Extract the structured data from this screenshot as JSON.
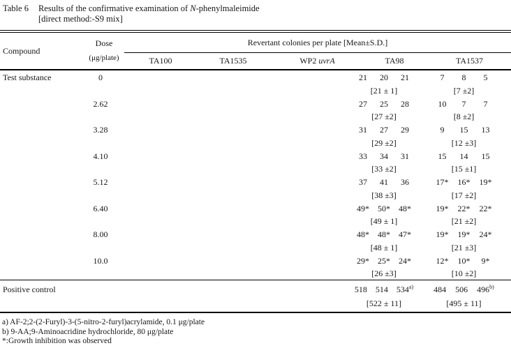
{
  "title": {
    "label": "Table 6",
    "line1_pre": "Results of the confirmative examination of ",
    "line1_italic": "N",
    "line1_post": "-phenylmaleimide",
    "line2": "[direct method:-S9 mix]"
  },
  "header": {
    "compound": "Compound",
    "dose_line1": "Dose",
    "dose_line2": "(μg/plate)",
    "span": "Revertant colonies per plate [Mean±S.D.]",
    "strains": {
      "ta100": "TA100",
      "ta1535": "TA1535",
      "wp2_pre": "WP2 ",
      "wp2_italic": "uvrA",
      "ta98": "TA98",
      "ta1537": "TA1537"
    }
  },
  "rows": [
    {
      "label": "Test substance",
      "dose": "0",
      "ta98": [
        "21",
        "20",
        "21"
      ],
      "ta98_mean": "[21 ± 1]",
      "ta1537": [
        "7",
        "8",
        "5"
      ],
      "ta1537_mean": "[7 ±2]"
    },
    {
      "label": "",
      "dose": "2.62",
      "ta98": [
        "27",
        "25",
        "28"
      ],
      "ta98_mean": "[27 ±2]",
      "ta1537": [
        "10",
        "7",
        "7"
      ],
      "ta1537_mean": "[8 ±2]"
    },
    {
      "label": "",
      "dose": "3.28",
      "ta98": [
        "31",
        "27",
        "29"
      ],
      "ta98_mean": "[29 ±2]",
      "ta1537": [
        "9",
        "15",
        "13"
      ],
      "ta1537_mean": "[12 ±3]"
    },
    {
      "label": "",
      "dose": "4.10",
      "ta98": [
        "33",
        "34",
        "31"
      ],
      "ta98_mean": "[33 ±2]",
      "ta1537": [
        "15",
        "14",
        "15"
      ],
      "ta1537_mean": "[15 ±1]"
    },
    {
      "label": "",
      "dose": "5.12",
      "ta98": [
        "37",
        "41",
        "36"
      ],
      "ta98_mean": "[38 ±3]",
      "ta1537": [
        "17*",
        "16*",
        "19*"
      ],
      "ta1537_mean": "[17 ±2]"
    },
    {
      "label": "",
      "dose": "6.40",
      "ta98": [
        "49*",
        "50*",
        "48*"
      ],
      "ta98_mean": "[49 ± 1]",
      "ta1537": [
        "19*",
        "22*",
        "22*"
      ],
      "ta1537_mean": "[21 ±2]"
    },
    {
      "label": "",
      "dose": "8.00",
      "ta98": [
        "48*",
        "48*",
        "47*"
      ],
      "ta98_mean": "[48 ± 1]",
      "ta1537": [
        "19*",
        "19*",
        "24*"
      ],
      "ta1537_mean": "[21 ±3]"
    },
    {
      "label": "",
      "dose": "10.0",
      "ta98": [
        "29*",
        "25*",
        "24*"
      ],
      "ta98_mean": "[26 ±3]",
      "ta1537": [
        "12*",
        "10*",
        "9*"
      ],
      "ta1537_mean": "[10 ±2]"
    }
  ],
  "positive_control": {
    "label": "Positive control",
    "ta98": [
      "518",
      "514",
      "534"
    ],
    "ta98_sup": "a)",
    "ta98_mean": "[522 ± 11]",
    "ta1537": [
      "484",
      "506",
      "496"
    ],
    "ta1537_sup": "b)",
    "ta1537_mean": "[495 ± 11]"
  },
  "footnotes": [
    "a) AF-2;2-(2-Furyl)-3-(5-nitro-2-furyl)acrylamide, 0.1 μg/plate",
    "b) 9-AA;9-Aminoacridine hydrochloride, 80 μg/plate",
    "*:Growth inhibition was observed"
  ]
}
